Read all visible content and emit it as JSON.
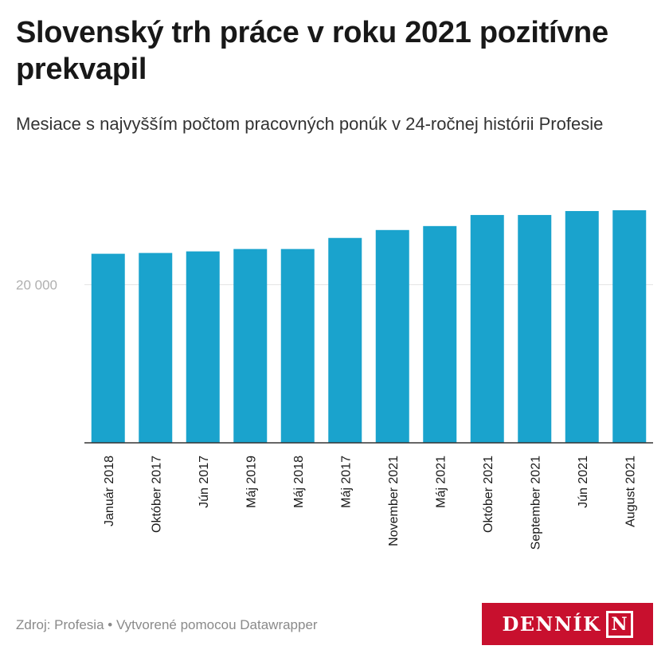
{
  "title": "Slovenský trh práce v roku 2021 pozitívne prekvapil",
  "subtitle": "Mesiace s najvyšším počtom pracovných ponúk v 24-ročnej histórii Profesie",
  "footer": {
    "source": "Zdroj: Profesia",
    "separator": "•",
    "credit": "Vytvorené pomocou Datawrapper"
  },
  "logo": {
    "text": "DENNÍK",
    "mark": "N"
  },
  "colors": {
    "bar": "#1aa3cd",
    "grid": "#e2e2e2",
    "tick_label": "#b0b0b0",
    "axis": "#333333",
    "logo_bg": "#c8102e"
  },
  "chart_data": {
    "type": "bar",
    "categories": [
      "Január 2018",
      "Október 2017",
      "Jún 2017",
      "Máj 2019",
      "Máj 2018",
      "Máj 2017",
      "November 2021",
      "Máj 2021",
      "Október 2021",
      "September 2021",
      "Jún 2021",
      "August 2021"
    ],
    "values": [
      23900,
      24000,
      24200,
      24500,
      24500,
      25900,
      26900,
      27400,
      28800,
      28800,
      29300,
      29400
    ],
    "ylim": [
      0,
      29600
    ],
    "y_ticks": [
      {
        "value": 20000,
        "label": "20 000"
      }
    ],
    "xlabel": "",
    "ylabel": "",
    "grid": true,
    "x_label_rotation": "vertical"
  }
}
